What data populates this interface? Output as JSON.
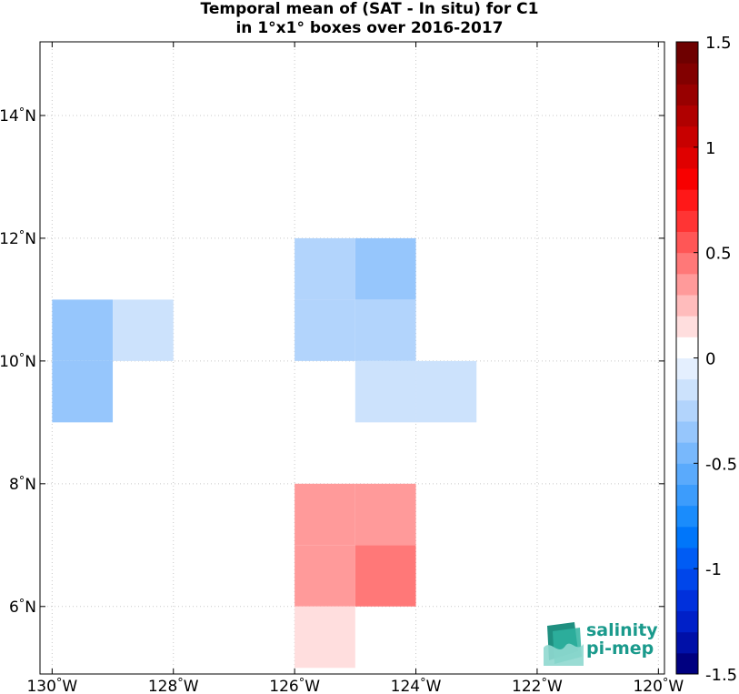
{
  "title_line1": "Temporal mean of (SAT - In situ) for C1",
  "title_line2": "in 1°x1° boxes over 2016-2017",
  "logo": {
    "line1": "salinity",
    "line2": "pi-mep",
    "color": "#1a9a8c"
  },
  "chart_data": {
    "type": "heatmap",
    "title": "Temporal mean of (SAT - In situ) for C1 in 1°x1° boxes over 2016-2017",
    "xlim": [
      -130.2,
      -119.9
    ],
    "ylim": [
      4.9,
      15.2
    ],
    "x_ticks": [
      {
        "value": -130,
        "label": "130°W"
      },
      {
        "value": -128,
        "label": "128°W"
      },
      {
        "value": -126,
        "label": "126°W"
      },
      {
        "value": -124,
        "label": "124°W"
      },
      {
        "value": -122,
        "label": "122°W"
      },
      {
        "value": -120,
        "label": "120°W"
      }
    ],
    "y_ticks": [
      {
        "value": 6,
        "label": "6°N"
      },
      {
        "value": 8,
        "label": "8°N"
      },
      {
        "value": 10,
        "label": "10°N"
      },
      {
        "value": 12,
        "label": "12°N"
      },
      {
        "value": 14,
        "label": "14°N"
      }
    ],
    "grid": true,
    "cells": [
      {
        "lon0": -130,
        "lat0": 10,
        "value": -0.35
      },
      {
        "lon0": -130,
        "lat0": 9,
        "value": -0.35
      },
      {
        "lon0": -129,
        "lat0": 10,
        "value": -0.15
      },
      {
        "lon0": -126,
        "lat0": 11,
        "value": -0.25
      },
      {
        "lon0": -125,
        "lat0": 11,
        "value": -0.35
      },
      {
        "lon0": -126,
        "lat0": 10,
        "value": -0.25
      },
      {
        "lon0": -125,
        "lat0": 10,
        "value": -0.25
      },
      {
        "lon0": -125,
        "lat0": 9,
        "value": -0.15
      },
      {
        "lon0": -124,
        "lat0": 9,
        "value": -0.15
      },
      {
        "lon0": -126,
        "lat0": 7,
        "value": 0.35
      },
      {
        "lon0": -125,
        "lat0": 7,
        "value": 0.35
      },
      {
        "lon0": -126,
        "lat0": 6,
        "value": 0.35
      },
      {
        "lon0": -125,
        "lat0": 6,
        "value": 0.45
      },
      {
        "lon0": -126,
        "lat0": 5,
        "value": 0.15
      }
    ],
    "colorbar": {
      "min": -1.5,
      "max": 1.5,
      "levels": 30,
      "ticks": [
        {
          "value": 1.5,
          "label": "1.5"
        },
        {
          "value": 1,
          "label": "1"
        },
        {
          "value": 0.5,
          "label": "0.5"
        },
        {
          "value": 0,
          "label": "0"
        },
        {
          "value": -0.5,
          "label": "-0.5"
        },
        {
          "value": -1,
          "label": "-1"
        },
        {
          "value": -1.5,
          "label": "-1.5"
        }
      ],
      "colors": [
        "#000080",
        "#0010a8",
        "#0020c8",
        "#0030dc",
        "#0046ea",
        "#005cf4",
        "#0076fa",
        "#1a8cfc",
        "#3c9cfc",
        "#5aaafc",
        "#78b8fc",
        "#96c6fc",
        "#b2d4fc",
        "#cce2fc",
        "#e4effe",
        "#ffffff",
        "#ffdede",
        "#ffbcbc",
        "#ff9a9a",
        "#ff7878",
        "#ff5656",
        "#ff3434",
        "#ff1818",
        "#f80000",
        "#e00000",
        "#c80000",
        "#b00000",
        "#980000",
        "#820000",
        "#6e0000"
      ]
    }
  }
}
